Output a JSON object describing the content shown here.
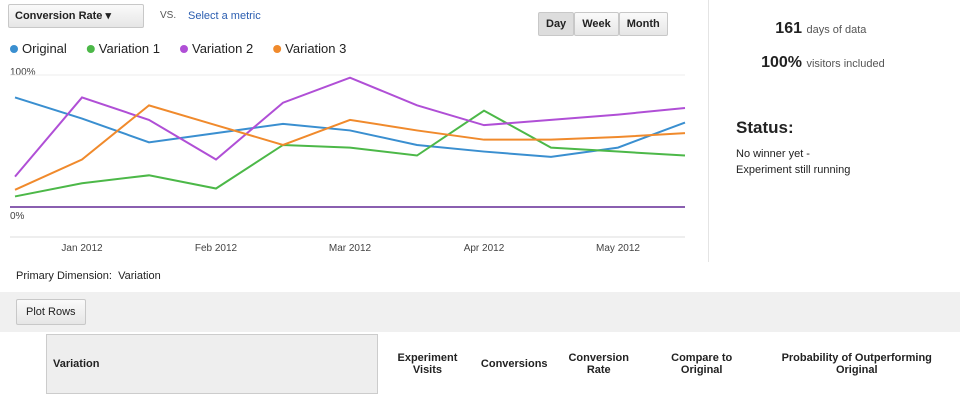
{
  "toolbar": {
    "metric": "Conversion Rate",
    "vs": "VS.",
    "select_metric": "Select a metric",
    "buttons": [
      "Day",
      "Week",
      "Month"
    ]
  },
  "chart_data": {
    "type": "line",
    "categories": [
      null,
      "Jan 2012",
      null,
      "Feb 2012",
      null,
      "Mar 2012",
      null,
      "Apr 2012",
      null,
      "May 2012",
      null
    ],
    "series": [
      {
        "name": "Original",
        "color": "#3a8fd0",
        "values": [
          83,
          67,
          49,
          56,
          63,
          58,
          47,
          42,
          38,
          45,
          64
        ]
      },
      {
        "name": "Variation 1",
        "color": "#4cb848",
        "values": [
          8,
          18,
          24,
          14,
          47,
          45,
          39,
          73,
          45,
          42,
          39
        ]
      },
      {
        "name": "Variation 2",
        "color": "#b04fd6",
        "values": [
          23,
          83,
          66,
          36,
          79,
          98,
          77,
          62,
          66,
          70,
          75
        ]
      },
      {
        "name": "Variation 3",
        "color": "#f08a2c",
        "values": [
          13,
          36,
          77,
          62,
          47,
          66,
          58,
          51,
          51,
          53,
          56
        ]
      }
    ],
    "ylim": [
      0,
      100
    ],
    "yticks": [
      {
        "value": 0,
        "label": "0%"
      },
      {
        "value": 100,
        "label": "100%"
      }
    ]
  },
  "stats": [
    {
      "value": "161",
      "label": "days of data"
    },
    {
      "value": "100%",
      "label": "visitors included"
    }
  ],
  "status": {
    "title": "Status:",
    "lines": [
      "No winner yet -",
      "Experiment still running"
    ]
  },
  "dimension": {
    "label": "Primary Dimension:",
    "value": "Variation"
  },
  "plot_rows": "Plot Rows",
  "table": {
    "headers": [
      "Variation",
      "Experiment Visits",
      "Conversions",
      "Conversion Rate",
      "Compare to Original",
      "Probability of Outperforming Original"
    ]
  }
}
